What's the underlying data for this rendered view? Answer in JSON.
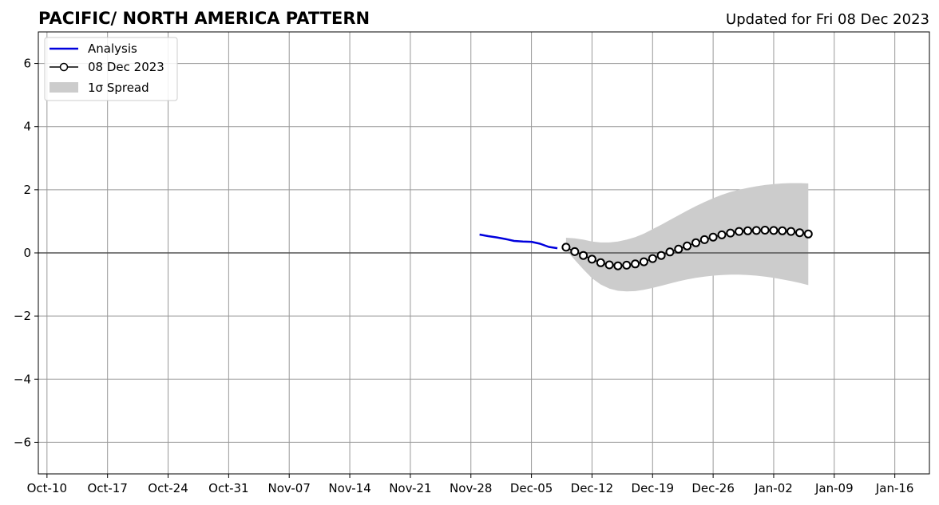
{
  "chart_data": {
    "type": "line",
    "title": "PACIFIC/ NORTH AMERICA PATTERN",
    "subtitle": "Updated for Fri 08 Dec 2023",
    "xlabel": "",
    "ylabel": "",
    "x_axis": {
      "type": "date",
      "range": [
        "2023-10-09",
        "2024-01-20"
      ],
      "tick_labels": [
        "Oct-10",
        "Oct-17",
        "Oct-24",
        "Oct-31",
        "Nov-07",
        "Nov-14",
        "Nov-21",
        "Nov-28",
        "Dec-05",
        "Dec-12",
        "Dec-19",
        "Dec-26",
        "Jan-02",
        "Jan-09",
        "Jan-16"
      ],
      "tick_dates": [
        "2023-10-10",
        "2023-10-17",
        "2023-10-24",
        "2023-10-31",
        "2023-11-07",
        "2023-11-14",
        "2023-11-21",
        "2023-11-28",
        "2023-12-05",
        "2023-12-12",
        "2023-12-19",
        "2023-12-26",
        "2024-01-02",
        "2024-01-09",
        "2024-01-16"
      ]
    },
    "y_axis": {
      "range": [
        -7,
        7
      ],
      "tick_values": [
        -6,
        -4,
        -2,
        0,
        2,
        4,
        6
      ],
      "tick_labels": [
        "−6",
        "−4",
        "−2",
        "0",
        "2",
        "4",
        "6"
      ]
    },
    "grid": true,
    "legend_position": "upper-left",
    "legend": {
      "analysis": "Analysis",
      "forecast": "08 Dec 2023",
      "spread": "1σ Spread"
    },
    "colors": {
      "analysis": "#0000dd",
      "forecast": "#000000",
      "spread": "#cccccc",
      "grid": "#999999",
      "zero_line": "#555555"
    },
    "series": [
      {
        "name": "Analysis",
        "x": [
          "2023-11-29",
          "2023-11-30",
          "2023-12-01",
          "2023-12-02",
          "2023-12-03",
          "2023-12-04",
          "2023-12-05",
          "2023-12-06",
          "2023-12-07",
          "2023-12-08"
        ],
        "y": [
          0.58,
          0.53,
          0.49,
          0.44,
          0.38,
          0.36,
          0.35,
          0.29,
          0.19,
          0.15
        ]
      },
      {
        "name": "08 Dec 2023",
        "x": [
          "2023-12-09",
          "2023-12-10",
          "2023-12-11",
          "2023-12-12",
          "2023-12-13",
          "2023-12-14",
          "2023-12-15",
          "2023-12-16",
          "2023-12-17",
          "2023-12-18",
          "2023-12-19",
          "2023-12-20",
          "2023-12-21",
          "2023-12-22",
          "2023-12-23",
          "2023-12-24",
          "2023-12-25",
          "2023-12-26",
          "2023-12-27",
          "2023-12-28",
          "2023-12-29",
          "2023-12-30",
          "2023-12-31",
          "2024-01-01",
          "2024-01-02",
          "2024-01-03",
          "2024-01-04",
          "2024-01-05",
          "2024-01-06"
        ],
        "y": [
          0.18,
          0.04,
          -0.08,
          -0.2,
          -0.31,
          -0.38,
          -0.41,
          -0.39,
          -0.35,
          -0.28,
          -0.18,
          -0.08,
          0.03,
          0.12,
          0.22,
          0.32,
          0.42,
          0.5,
          0.57,
          0.63,
          0.68,
          0.7,
          0.71,
          0.72,
          0.71,
          0.7,
          0.68,
          0.64,
          0.6
        ]
      }
    ],
    "spread": {
      "name": "1σ Spread",
      "x": [
        "2023-12-09",
        "2023-12-10",
        "2023-12-11",
        "2023-12-12",
        "2023-12-13",
        "2023-12-14",
        "2023-12-15",
        "2023-12-16",
        "2023-12-17",
        "2023-12-18",
        "2023-12-19",
        "2023-12-20",
        "2023-12-21",
        "2023-12-22",
        "2023-12-23",
        "2023-12-24",
        "2023-12-25",
        "2023-12-26",
        "2023-12-27",
        "2023-12-28",
        "2023-12-29",
        "2023-12-30",
        "2023-12-31",
        "2024-01-01",
        "2024-01-02",
        "2024-01-03",
        "2024-01-04",
        "2024-01-05",
        "2024-01-06"
      ],
      "upper": [
        0.48,
        0.46,
        0.42,
        0.36,
        0.33,
        0.33,
        0.36,
        0.42,
        0.5,
        0.61,
        0.75,
        0.89,
        1.04,
        1.19,
        1.34,
        1.48,
        1.61,
        1.73,
        1.84,
        1.93,
        2.0,
        2.06,
        2.11,
        2.15,
        2.18,
        2.2,
        2.21,
        2.21,
        2.2
      ],
      "lower": [
        0.1,
        -0.22,
        -0.52,
        -0.8,
        -1.0,
        -1.13,
        -1.2,
        -1.22,
        -1.21,
        -1.17,
        -1.11,
        -1.04,
        -0.97,
        -0.9,
        -0.84,
        -0.79,
        -0.75,
        -0.72,
        -0.7,
        -0.69,
        -0.69,
        -0.7,
        -0.72,
        -0.75,
        -0.79,
        -0.84,
        -0.89,
        -0.95,
        -1.02
      ]
    }
  }
}
